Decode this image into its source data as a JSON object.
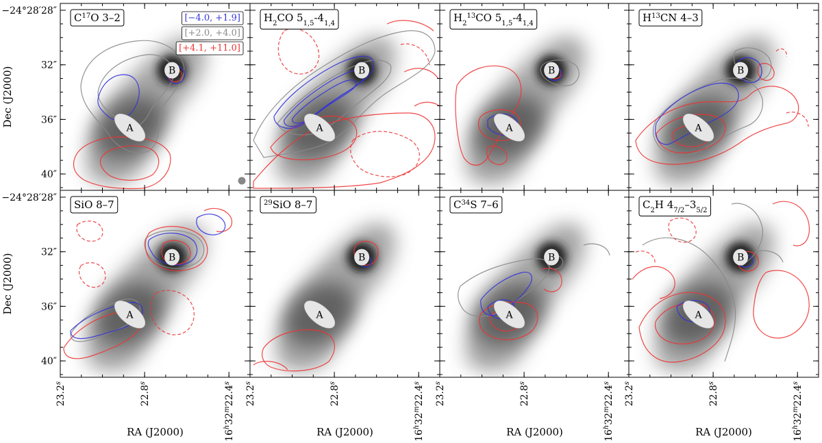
{
  "chart_data": {
    "type": "contour",
    "figure_layout": "2x4 panel grid",
    "background": "grayscale continuum map",
    "xlabel": "RA (J2000)",
    "ylabel": "Dec (J2000)",
    "x_ticks": [
      "23.2s",
      "22.8s",
      "16h32m22.4s"
    ],
    "x_tick_labels": [
      {
        "main": "23.2",
        "sup": "s"
      },
      {
        "main": "22.8",
        "sup": "s"
      },
      {
        "main": "16",
        "sup": "h",
        "main2": "32",
        "sup2": "m",
        "main3": "22.4",
        "sup3": "s"
      }
    ],
    "y_ticks": [
      "−24°28′28″",
      "32″",
      "36″",
      "40″"
    ],
    "y_tick_values_arcsec": [
      28,
      32,
      36,
      40
    ],
    "ra_range_s": [
      23.2,
      22.3
    ],
    "dec_range_arcsec": [
      27.5,
      41.2
    ],
    "velocity_legend": [
      {
        "label": "[−4.0, +1.9]",
        "color": "#3333dd"
      },
      {
        "label": "[+2.0, +4.0]",
        "color": "#888888"
      },
      {
        "label": "[+4.1, +11.0]",
        "color": "#ee3333"
      }
    ],
    "sources": [
      {
        "name": "A",
        "ra_s": 22.87,
        "dec_arcsec": 36.6
      },
      {
        "name": "B",
        "ra_s": 22.67,
        "dec_arcsec": 32.4
      }
    ],
    "panels": [
      {
        "id": "c17o",
        "title": [
          {
            "t": "C"
          },
          {
            "sup": "17"
          },
          {
            "t": "O 3–2"
          }
        ],
        "show_legend": true,
        "show_beam": true
      },
      {
        "id": "h2co",
        "title": [
          {
            "t": "H"
          },
          {
            "sub": "2"
          },
          {
            "t": "CO 5"
          },
          {
            "sub": "1,5"
          },
          {
            "t": "-4"
          },
          {
            "sub": "1,4"
          }
        ]
      },
      {
        "id": "h213co",
        "title": [
          {
            "t": "H"
          },
          {
            "sub": "2"
          },
          {
            "sup": "13"
          },
          {
            "t": "CO 5"
          },
          {
            "sub": "1,5"
          },
          {
            "t": "-4"
          },
          {
            "sub": "1,4"
          }
        ]
      },
      {
        "id": "h13cn",
        "title": [
          {
            "t": "H"
          },
          {
            "sup": "13"
          },
          {
            "t": "CN 4–3"
          }
        ]
      },
      {
        "id": "sio",
        "title": [
          {
            "t": "SiO 8–7"
          }
        ]
      },
      {
        "id": "29sio",
        "title": [
          {
            "sup": "29"
          },
          {
            "t": "SiO 8–7"
          }
        ]
      },
      {
        "id": "c34s",
        "title": [
          {
            "t": "C"
          },
          {
            "sup": "34"
          },
          {
            "t": "S 7–6"
          }
        ]
      },
      {
        "id": "c2h",
        "title": [
          {
            "t": "C"
          },
          {
            "sub": "2"
          },
          {
            "t": "H 4"
          },
          {
            "sub": "7/2"
          },
          {
            "t": "–3"
          },
          {
            "sub": "5/2"
          }
        ]
      }
    ]
  }
}
